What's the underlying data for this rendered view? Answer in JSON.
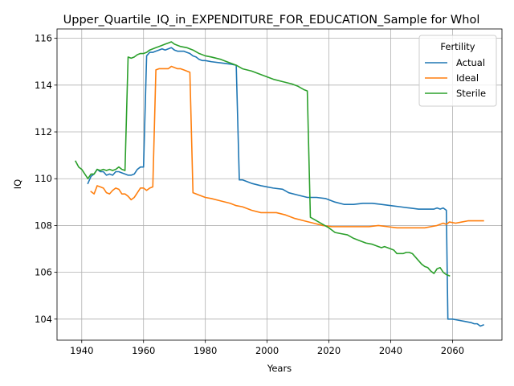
{
  "chart_data": {
    "type": "line",
    "title": "Upper_Quartile_IQ_in_EXPENDITURE_FOR_EDUCATION_Sample for Whol",
    "xlabel": "Years",
    "ylabel": "IQ",
    "xlim": [
      1932,
      2076
    ],
    "ylim": [
      103.1,
      116.4
    ],
    "xticks": [
      1940,
      1960,
      1980,
      2000,
      2020,
      2040,
      2060
    ],
    "yticks": [
      104,
      106,
      108,
      110,
      112,
      114,
      116
    ],
    "grid": true,
    "legend": {
      "title": "Fertility",
      "placement": "top-right"
    },
    "series": [
      {
        "name": "Actual",
        "color": "#1f77b4",
        "points": [
          [
            1942,
            109.8
          ],
          [
            1943,
            110.1
          ],
          [
            1944,
            110.2
          ],
          [
            1945,
            110.4
          ],
          [
            1946,
            110.3
          ],
          [
            1947,
            110.3
          ],
          [
            1948,
            110.15
          ],
          [
            1949,
            110.2
          ],
          [
            1950,
            110.15
          ],
          [
            1951,
            110.3
          ],
          [
            1952,
            110.3
          ],
          [
            1953,
            110.25
          ],
          [
            1954,
            110.2
          ],
          [
            1955,
            110.15
          ],
          [
            1956,
            110.15
          ],
          [
            1957,
            110.2
          ],
          [
            1958,
            110.4
          ],
          [
            1959,
            110.5
          ],
          [
            1960,
            110.5
          ],
          [
            1961,
            115.25
          ],
          [
            1962,
            115.4
          ],
          [
            1963,
            115.4
          ],
          [
            1964,
            115.45
          ],
          [
            1965,
            115.5
          ],
          [
            1966,
            115.55
          ],
          [
            1967,
            115.5
          ],
          [
            1968,
            115.55
          ],
          [
            1969,
            115.6
          ],
          [
            1970,
            115.5
          ],
          [
            1971,
            115.45
          ],
          [
            1972,
            115.45
          ],
          [
            1973,
            115.45
          ],
          [
            1974,
            115.4
          ],
          [
            1975,
            115.35
          ],
          [
            1976,
            115.25
          ],
          [
            1977,
            115.2
          ],
          [
            1978,
            115.1
          ],
          [
            1979,
            115.05
          ],
          [
            1980,
            115.05
          ],
          [
            1982,
            115.0
          ],
          [
            1985,
            114.95
          ],
          [
            1988,
            114.9
          ],
          [
            1990,
            114.85
          ],
          [
            1991,
            109.95
          ],
          [
            1992,
            109.95
          ],
          [
            1995,
            109.8
          ],
          [
            1998,
            109.7
          ],
          [
            2000,
            109.65
          ],
          [
            2002,
            109.6
          ],
          [
            2005,
            109.55
          ],
          [
            2007,
            109.4
          ],
          [
            2010,
            109.3
          ],
          [
            2013,
            109.2
          ],
          [
            2016,
            109.2
          ],
          [
            2019,
            109.15
          ],
          [
            2022,
            109.0
          ],
          [
            2025,
            108.9
          ],
          [
            2028,
            108.9
          ],
          [
            2031,
            108.95
          ],
          [
            2034,
            108.95
          ],
          [
            2037,
            108.9
          ],
          [
            2040,
            108.85
          ],
          [
            2043,
            108.8
          ],
          [
            2046,
            108.75
          ],
          [
            2049,
            108.7
          ],
          [
            2052,
            108.7
          ],
          [
            2054,
            108.7
          ],
          [
            2055,
            108.75
          ],
          [
            2056,
            108.7
          ],
          [
            2057,
            108.75
          ],
          [
            2058,
            108.65
          ],
          [
            2058.5,
            104.0
          ],
          [
            2060,
            104.0
          ],
          [
            2062,
            103.95
          ],
          [
            2064,
            103.9
          ],
          [
            2066,
            103.85
          ],
          [
            2067,
            103.8
          ],
          [
            2068,
            103.8
          ],
          [
            2069,
            103.7
          ],
          [
            2070,
            103.75
          ]
        ]
      },
      {
        "name": "Ideal",
        "color": "#ff7f0e",
        "points": [
          [
            1943,
            109.45
          ],
          [
            1944,
            109.35
          ],
          [
            1945,
            109.7
          ],
          [
            1946,
            109.65
          ],
          [
            1947,
            109.6
          ],
          [
            1948,
            109.4
          ],
          [
            1949,
            109.35
          ],
          [
            1950,
            109.5
          ],
          [
            1951,
            109.6
          ],
          [
            1952,
            109.55
          ],
          [
            1953,
            109.35
          ],
          [
            1954,
            109.35
          ],
          [
            1955,
            109.25
          ],
          [
            1956,
            109.1
          ],
          [
            1957,
            109.2
          ],
          [
            1958,
            109.4
          ],
          [
            1959,
            109.6
          ],
          [
            1960,
            109.6
          ],
          [
            1961,
            109.5
          ],
          [
            1962,
            109.6
          ],
          [
            1963,
            109.65
          ],
          [
            1964,
            114.65
          ],
          [
            1965,
            114.7
          ],
          [
            1966,
            114.7
          ],
          [
            1967,
            114.7
          ],
          [
            1968,
            114.7
          ],
          [
            1969,
            114.8
          ],
          [
            1970,
            114.75
          ],
          [
            1971,
            114.7
          ],
          [
            1972,
            114.7
          ],
          [
            1973,
            114.65
          ],
          [
            1974,
            114.6
          ],
          [
            1975,
            114.55
          ],
          [
            1976,
            109.4
          ],
          [
            1978,
            109.3
          ],
          [
            1980,
            109.2
          ],
          [
            1982,
            109.15
          ],
          [
            1985,
            109.05
          ],
          [
            1988,
            108.95
          ],
          [
            1990,
            108.85
          ],
          [
            1992,
            108.8
          ],
          [
            1995,
            108.65
          ],
          [
            1998,
            108.55
          ],
          [
            2000,
            108.55
          ],
          [
            2003,
            108.55
          ],
          [
            2006,
            108.45
          ],
          [
            2009,
            108.3
          ],
          [
            2012,
            108.2
          ],
          [
            2015,
            108.1
          ],
          [
            2018,
            108.0
          ],
          [
            2021,
            107.95
          ],
          [
            2024,
            107.95
          ],
          [
            2027,
            107.95
          ],
          [
            2030,
            107.95
          ],
          [
            2033,
            107.95
          ],
          [
            2036,
            108.0
          ],
          [
            2039,
            107.95
          ],
          [
            2042,
            107.9
          ],
          [
            2045,
            107.9
          ],
          [
            2048,
            107.9
          ],
          [
            2051,
            107.9
          ],
          [
            2053,
            107.95
          ],
          [
            2055,
            108.0
          ],
          [
            2057,
            108.1
          ],
          [
            2058,
            108.05
          ],
          [
            2059,
            108.15
          ],
          [
            2061,
            108.1
          ],
          [
            2063,
            108.15
          ],
          [
            2065,
            108.2
          ],
          [
            2067,
            108.2
          ],
          [
            2070,
            108.2
          ]
        ]
      },
      {
        "name": "Sterile",
        "color": "#2ca02c",
        "points": [
          [
            1938,
            110.75
          ],
          [
            1939,
            110.5
          ],
          [
            1940,
            110.4
          ],
          [
            1941,
            110.2
          ],
          [
            1942,
            110.0
          ],
          [
            1943,
            110.2
          ],
          [
            1944,
            110.2
          ],
          [
            1945,
            110.4
          ],
          [
            1946,
            110.35
          ],
          [
            1947,
            110.4
          ],
          [
            1948,
            110.35
          ],
          [
            1949,
            110.4
          ],
          [
            1950,
            110.35
          ],
          [
            1951,
            110.4
          ],
          [
            1952,
            110.5
          ],
          [
            1953,
            110.4
          ],
          [
            1954,
            110.35
          ],
          [
            1955,
            115.2
          ],
          [
            1956,
            115.15
          ],
          [
            1957,
            115.2
          ],
          [
            1958,
            115.3
          ],
          [
            1959,
            115.35
          ],
          [
            1960,
            115.35
          ],
          [
            1961,
            115.4
          ],
          [
            1962,
            115.5
          ],
          [
            1963,
            115.55
          ],
          [
            1964,
            115.6
          ],
          [
            1965,
            115.65
          ],
          [
            1966,
            115.7
          ],
          [
            1967,
            115.75
          ],
          [
            1968,
            115.8
          ],
          [
            1969,
            115.85
          ],
          [
            1970,
            115.75
          ],
          [
            1971,
            115.7
          ],
          [
            1972,
            115.65
          ],
          [
            1974,
            115.6
          ],
          [
            1976,
            115.5
          ],
          [
            1978,
            115.35
          ],
          [
            1980,
            115.25
          ],
          [
            1982,
            115.2
          ],
          [
            1985,
            115.1
          ],
          [
            1988,
            114.95
          ],
          [
            1990,
            114.85
          ],
          [
            1992,
            114.7
          ],
          [
            1995,
            114.6
          ],
          [
            1998,
            114.45
          ],
          [
            2000,
            114.35
          ],
          [
            2002,
            114.25
          ],
          [
            2005,
            114.15
          ],
          [
            2008,
            114.05
          ],
          [
            2010,
            113.95
          ],
          [
            2012,
            113.8
          ],
          [
            2013,
            113.75
          ],
          [
            2014,
            108.35
          ],
          [
            2016,
            108.2
          ],
          [
            2018,
            108.05
          ],
          [
            2020,
            107.9
          ],
          [
            2022,
            107.7
          ],
          [
            2024,
            107.65
          ],
          [
            2026,
            107.6
          ],
          [
            2028,
            107.45
          ],
          [
            2030,
            107.35
          ],
          [
            2032,
            107.25
          ],
          [
            2034,
            107.2
          ],
          [
            2036,
            107.1
          ],
          [
            2037,
            107.05
          ],
          [
            2038,
            107.1
          ],
          [
            2040,
            107.0
          ],
          [
            2041,
            106.95
          ],
          [
            2042,
            106.8
          ],
          [
            2044,
            106.8
          ],
          [
            2045,
            106.85
          ],
          [
            2046,
            106.85
          ],
          [
            2047,
            106.8
          ],
          [
            2048,
            106.65
          ],
          [
            2049,
            106.5
          ],
          [
            2050,
            106.35
          ],
          [
            2051,
            106.25
          ],
          [
            2052,
            106.2
          ],
          [
            2053,
            106.05
          ],
          [
            2054,
            105.95
          ],
          [
            2055,
            106.15
          ],
          [
            2056,
            106.2
          ],
          [
            2057,
            106.0
          ],
          [
            2058,
            105.9
          ],
          [
            2059,
            105.85
          ]
        ]
      }
    ]
  }
}
